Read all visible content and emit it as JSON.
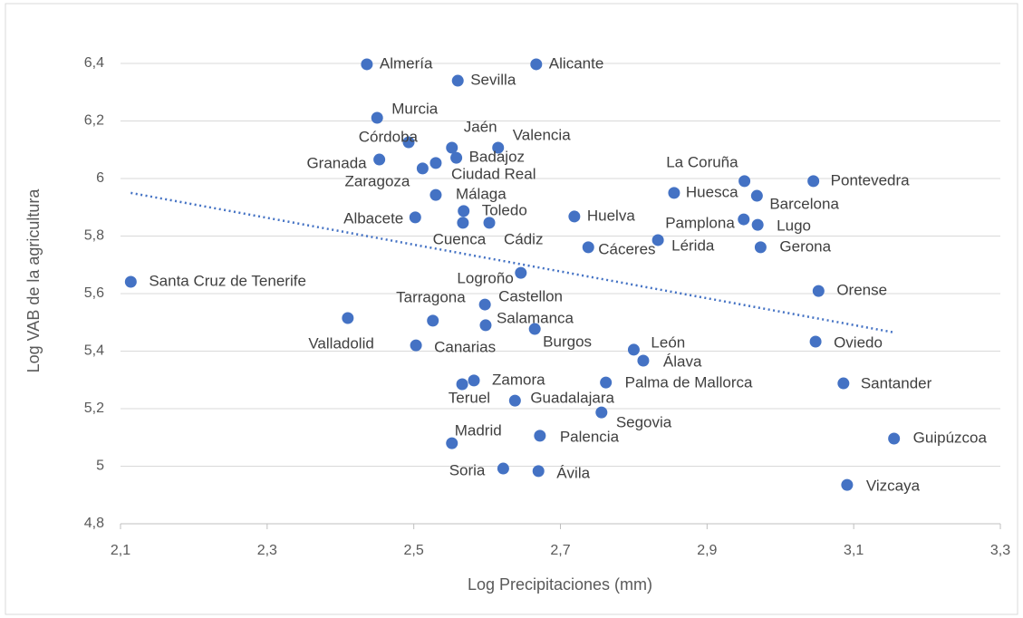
{
  "chart_data": {
    "type": "scatter",
    "xlabel": "Log Precipitaciones (mm)",
    "ylabel": "Log VAB de la agricultura",
    "color": "#4472c4",
    "grid": true,
    "xlim": [
      2.1,
      3.3
    ],
    "ylim": [
      4.8,
      6.4
    ],
    "xticks": [
      {
        "value": 2.1,
        "label": "2,1"
      },
      {
        "value": 2.3,
        "label": "2,3"
      },
      {
        "value": 2.5,
        "label": "2,5"
      },
      {
        "value": 2.7,
        "label": "2,7"
      },
      {
        "value": 2.9,
        "label": "2,9"
      },
      {
        "value": 3.1,
        "label": "3,1"
      },
      {
        "value": 3.3,
        "label": "3,3"
      }
    ],
    "yticks": [
      {
        "value": 4.8,
        "label": "4,8"
      },
      5,
      {
        "value": 5.2,
        "label": "5,2"
      },
      {
        "value": 5.4,
        "label": "5,4"
      },
      {
        "value": 5.6,
        "label": "5,6"
      },
      {
        "value": 5.8,
        "label": "5,8"
      },
      6,
      {
        "value": 6.2,
        "label": "6,2"
      },
      {
        "value": 6.4,
        "label": "6,4"
      }
    ],
    "labels": [
      "Almería",
      "Alicante",
      "Sevilla",
      "Murcia",
      "Córdoba",
      "Jaén",
      "Valencia",
      "Badajoz",
      "Granada",
      "Zaragoza",
      "Ciudad Real",
      "Málaga",
      "Toledo",
      "Albacete",
      "Cuenca",
      "Cádiz",
      "Huelva",
      "La Coruña",
      "Pontevedra",
      "Huesca",
      "Barcelona",
      "Pamplona",
      "Lugo",
      "Lérida",
      "Cáceres",
      "Gerona",
      "Logroño",
      "Santa Cruz de Tenerife",
      "Orense",
      "Castellon",
      "Valladolid",
      "Tarragona",
      "Salamanca",
      "Burgos",
      "Canarias",
      "Oviedo",
      "León",
      "Álava",
      "Zamora",
      "Teruel",
      "Palma de Mallorca",
      "Santander",
      "Guadalajara",
      "Segovia",
      "Palencia",
      "Guipúzcoa",
      "Madrid",
      "Soria",
      "Ávila",
      "Vizcaya"
    ],
    "x": [
      2.436,
      2.667,
      2.56,
      2.45,
      2.493,
      2.552,
      2.615,
      2.558,
      2.453,
      2.512,
      2.53,
      2.53,
      2.568,
      2.502,
      2.567,
      2.603,
      2.719,
      2.951,
      3.045,
      2.855,
      2.968,
      2.95,
      2.969,
      2.833,
      2.738,
      2.973,
      2.646,
      2.114,
      3.052,
      2.597,
      2.41,
      2.526,
      2.598,
      2.665,
      2.503,
      3.048,
      2.8,
      2.813,
      2.582,
      2.566,
      2.762,
      3.086,
      2.638,
      2.756,
      2.672,
      3.155,
      2.552,
      2.622,
      2.67,
      3.091
    ],
    "values": [
      6.397,
      6.397,
      6.34,
      6.211,
      6.126,
      6.107,
      6.107,
      6.072,
      6.066,
      6.035,
      6.054,
      5.943,
      5.887,
      5.865,
      5.846,
      5.846,
      5.868,
      5.991,
      5.991,
      5.95,
      5.94,
      5.858,
      5.839,
      5.786,
      5.761,
      5.761,
      5.672,
      5.641,
      5.609,
      5.562,
      5.515,
      5.506,
      5.49,
      5.477,
      5.42,
      5.433,
      5.405,
      5.367,
      5.298,
      5.285,
      5.291,
      5.288,
      5.228,
      5.187,
      5.106,
      5.096,
      5.08,
      4.992,
      4.983,
      4.935
    ],
    "trendline": {
      "x": [
        2.114,
        3.155
      ],
      "values": [
        5.95,
        5.465
      ]
    }
  }
}
